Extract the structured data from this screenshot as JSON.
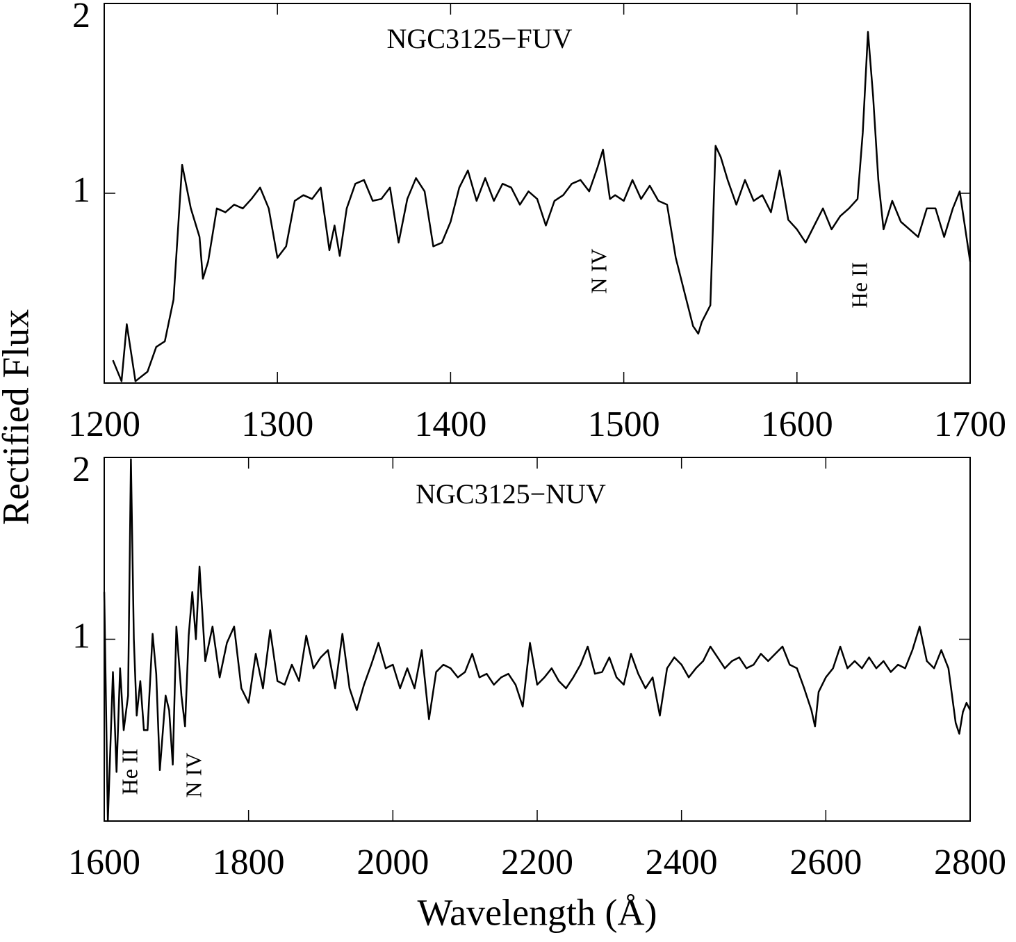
{
  "ylabel": "Rectified Flux",
  "chart_data": [
    {
      "type": "line",
      "title": "NGC3125−FUV",
      "color": "#000000",
      "annotations": [
        "N IV",
        "He II"
      ],
      "xlim": [
        1200,
        1700
      ],
      "xticks": [
        1200,
        1300,
        1400,
        1500,
        1600,
        1700
      ],
      "ylim": [
        0,
        2
      ],
      "yticks": [
        1,
        2
      ],
      "x": [
        1205,
        1210,
        1213,
        1218,
        1225,
        1230,
        1235,
        1240,
        1245,
        1250,
        1255,
        1257,
        1260,
        1265,
        1270,
        1275,
        1280,
        1285,
        1290,
        1295,
        1300,
        1305,
        1310,
        1315,
        1320,
        1325,
        1330,
        1333,
        1336,
        1340,
        1345,
        1350,
        1355,
        1360,
        1365,
        1370,
        1375,
        1380,
        1385,
        1390,
        1395,
        1400,
        1405,
        1410,
        1415,
        1420,
        1425,
        1430,
        1435,
        1440,
        1445,
        1450,
        1455,
        1460,
        1465,
        1470,
        1475,
        1480,
        1485,
        1488,
        1492,
        1495,
        1500,
        1505,
        1510,
        1515,
        1520,
        1525,
        1530,
        1535,
        1540,
        1543,
        1545,
        1550,
        1553,
        1556,
        1560,
        1565,
        1570,
        1575,
        1580,
        1585,
        1590,
        1595,
        1600,
        1605,
        1610,
        1615,
        1620,
        1625,
        1630,
        1635,
        1638,
        1641,
        1644,
        1647,
        1650,
        1655,
        1660,
        1665,
        1670,
        1675,
        1680,
        1685,
        1690,
        1694,
        1700
      ],
      "values": [
        0.12,
        0.01,
        0.31,
        0.01,
        0.06,
        0.19,
        0.22,
        0.44,
        1.15,
        0.92,
        0.77,
        0.55,
        0.64,
        0.92,
        0.9,
        0.94,
        0.92,
        0.97,
        1.03,
        0.92,
        0.66,
        0.72,
        0.96,
        0.99,
        0.97,
        1.03,
        0.7,
        0.83,
        0.67,
        0.92,
        1.05,
        1.07,
        0.96,
        0.97,
        1.03,
        0.74,
        0.97,
        1.08,
        1.01,
        0.72,
        0.74,
        0.85,
        1.03,
        1.12,
        0.96,
        1.08,
        0.96,
        1.05,
        1.03,
        0.94,
        1.01,
        0.97,
        0.83,
        0.96,
        0.99,
        1.05,
        1.07,
        1.01,
        1.14,
        1.23,
        0.97,
        0.99,
        0.96,
        1.07,
        0.97,
        1.04,
        0.96,
        0.94,
        0.66,
        0.48,
        0.3,
        0.26,
        0.32,
        0.41,
        1.25,
        1.19,
        1.07,
        0.94,
        1.07,
        0.96,
        0.99,
        0.9,
        1.12,
        0.86,
        0.81,
        0.74,
        0.83,
        0.92,
        0.81,
        0.88,
        0.92,
        0.97,
        1.32,
        1.85,
        1.51,
        1.07,
        0.81,
        0.96,
        0.85,
        0.81,
        0.77,
        0.92,
        0.92,
        0.77,
        0.92,
        1.01,
        0.64
      ]
    },
    {
      "type": "line",
      "title": "NGC3125−NUV",
      "color": "#000000",
      "annotations": [
        "He II",
        "N IV"
      ],
      "xlabel": "Wavelength (Å)",
      "xlim": [
        1600,
        2800
      ],
      "xticks": [
        1600,
        1800,
        2000,
        2200,
        2400,
        2600,
        2800
      ],
      "ylim": [
        0,
        2
      ],
      "yticks": [
        1,
        2
      ],
      "x": [
        1600,
        1605,
        1612,
        1617,
        1622,
        1627,
        1633,
        1637,
        1641,
        1645,
        1650,
        1655,
        1660,
        1667,
        1672,
        1677,
        1685,
        1690,
        1695,
        1700,
        1707,
        1712,
        1717,
        1722,
        1727,
        1732,
        1740,
        1750,
        1760,
        1770,
        1780,
        1790,
        1800,
        1810,
        1820,
        1830,
        1840,
        1850,
        1860,
        1870,
        1880,
        1890,
        1900,
        1910,
        1920,
        1930,
        1940,
        1950,
        1960,
        1970,
        1980,
        1990,
        2000,
        2010,
        2020,
        2030,
        2040,
        2050,
        2060,
        2070,
        2080,
        2090,
        2100,
        2110,
        2120,
        2130,
        2140,
        2150,
        2160,
        2170,
        2180,
        2190,
        2200,
        2210,
        2220,
        2230,
        2240,
        2250,
        2260,
        2270,
        2280,
        2290,
        2300,
        2310,
        2320,
        2330,
        2340,
        2350,
        2360,
        2370,
        2380,
        2390,
        2400,
        2410,
        2420,
        2430,
        2440,
        2450,
        2460,
        2470,
        2480,
        2490,
        2500,
        2510,
        2520,
        2530,
        2540,
        2550,
        2560,
        2570,
        2580,
        2585,
        2590,
        2600,
        2610,
        2620,
        2630,
        2640,
        2650,
        2660,
        2670,
        2680,
        2690,
        2700,
        2710,
        2720,
        2730,
        2740,
        2750,
        2760,
        2770,
        2775,
        2780,
        2785,
        2790,
        2795,
        2800
      ],
      "values": [
        1.26,
        0,
        0.82,
        0.27,
        0.84,
        0.5,
        0.69,
        1.99,
        1.0,
        0.58,
        0.77,
        0.5,
        0.5,
        1.03,
        0.81,
        0.28,
        0.69,
        0.61,
        0.31,
        1.07,
        0.69,
        0.52,
        1.02,
        1.26,
        1.0,
        1.4,
        0.88,
        1.07,
        0.79,
        0.98,
        1.07,
        0.73,
        0.65,
        0.92,
        0.73,
        1.05,
        0.77,
        0.75,
        0.86,
        0.77,
        1.02,
        0.84,
        0.9,
        0.94,
        0.73,
        1.03,
        0.73,
        0.61,
        0.75,
        0.86,
        0.98,
        0.84,
        0.86,
        0.73,
        0.84,
        0.73,
        0.94,
        0.56,
        0.82,
        0.86,
        0.84,
        0.79,
        0.82,
        0.92,
        0.79,
        0.81,
        0.75,
        0.79,
        0.81,
        0.75,
        0.63,
        0.98,
        0.75,
        0.79,
        0.84,
        0.77,
        0.73,
        0.79,
        0.86,
        0.96,
        0.81,
        0.82,
        0.9,
        0.79,
        0.75,
        0.92,
        0.81,
        0.73,
        0.79,
        0.58,
        0.84,
        0.9,
        0.86,
        0.79,
        0.84,
        0.88,
        0.96,
        0.9,
        0.84,
        0.88,
        0.9,
        0.84,
        0.86,
        0.92,
        0.88,
        0.92,
        0.96,
        0.86,
        0.84,
        0.73,
        0.61,
        0.52,
        0.71,
        0.79,
        0.84,
        0.96,
        0.84,
        0.88,
        0.84,
        0.9,
        0.84,
        0.88,
        0.82,
        0.86,
        0.84,
        0.94,
        1.07,
        0.88,
        0.84,
        0.94,
        0.84,
        0.69,
        0.54,
        0.48,
        0.6,
        0.65,
        0.61
      ]
    }
  ]
}
